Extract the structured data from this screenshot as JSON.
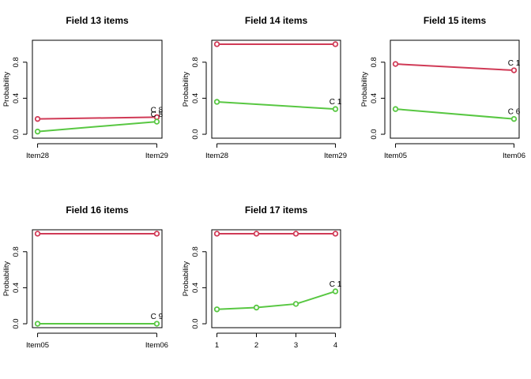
{
  "figure": {
    "background": "#ffffff"
  },
  "colors": {
    "red": "#d03a56",
    "green": "#58c742"
  },
  "chart_data": [
    {
      "type": "line",
      "title": "Field 13 items",
      "xlabel": "",
      "ylabel": "Probability",
      "ylim": [
        0,
        1
      ],
      "yticks": [
        "0.0",
        "0.4",
        "0.8"
      ],
      "categories": [
        "Item28",
        "Item29"
      ],
      "series": [
        {
          "color": "#d03a56",
          "values": [
            0.17,
            0.19
          ],
          "end_label": "C 8"
        },
        {
          "color": "#58c742",
          "values": [
            0.03,
            0.14
          ],
          "end_label": "C 8"
        }
      ]
    },
    {
      "type": "line",
      "title": "Field 14 items",
      "xlabel": "",
      "ylabel": "Probability",
      "ylim": [
        0,
        1
      ],
      "yticks": [
        "0.0",
        "0.4",
        "0.8"
      ],
      "categories": [
        "Item28",
        "Item29"
      ],
      "series": [
        {
          "color": "#d03a56",
          "values": [
            1.0,
            1.0
          ],
          "end_label": ""
        },
        {
          "color": "#58c742",
          "values": [
            0.36,
            0.28
          ],
          "end_label": "C 1"
        }
      ]
    },
    {
      "type": "line",
      "title": "Field 15 items",
      "xlabel": "",
      "ylabel": "Probability",
      "ylim": [
        0,
        1
      ],
      "yticks": [
        "0.0",
        "0.4",
        "0.8"
      ],
      "categories": [
        "Item05",
        "Item06"
      ],
      "series": [
        {
          "color": "#d03a56",
          "values": [
            0.78,
            0.71
          ],
          "end_label": "C 1"
        },
        {
          "color": "#58c742",
          "values": [
            0.28,
            0.17
          ],
          "end_label": "C 6"
        }
      ]
    },
    {
      "type": "line",
      "title": "Field 16 items",
      "xlabel": "",
      "ylabel": "Probability",
      "ylim": [
        0,
        1
      ],
      "yticks": [
        "0.0",
        "0.4",
        "0.8"
      ],
      "categories": [
        "Item05",
        "Item06"
      ],
      "series": [
        {
          "color": "#d03a56",
          "values": [
            1.0,
            1.0
          ],
          "end_label": ""
        },
        {
          "color": "#58c742",
          "values": [
            0.0,
            0.0
          ],
          "end_label": "C 9"
        }
      ]
    },
    {
      "type": "line",
      "title": "Field 17 items",
      "xlabel": "",
      "ylabel": "Probability",
      "ylim": [
        0,
        1
      ],
      "yticks": [
        "0.0",
        "0.4",
        "0.8"
      ],
      "categories": [
        "1",
        "2",
        "3",
        "4"
      ],
      "series": [
        {
          "color": "#d03a56",
          "values": [
            1.0,
            1.0,
            1.0,
            1.0
          ],
          "end_label": ""
        },
        {
          "color": "#58c742",
          "values": [
            0.16,
            0.18,
            0.22,
            0.36
          ],
          "end_label": "C 1"
        }
      ]
    }
  ]
}
